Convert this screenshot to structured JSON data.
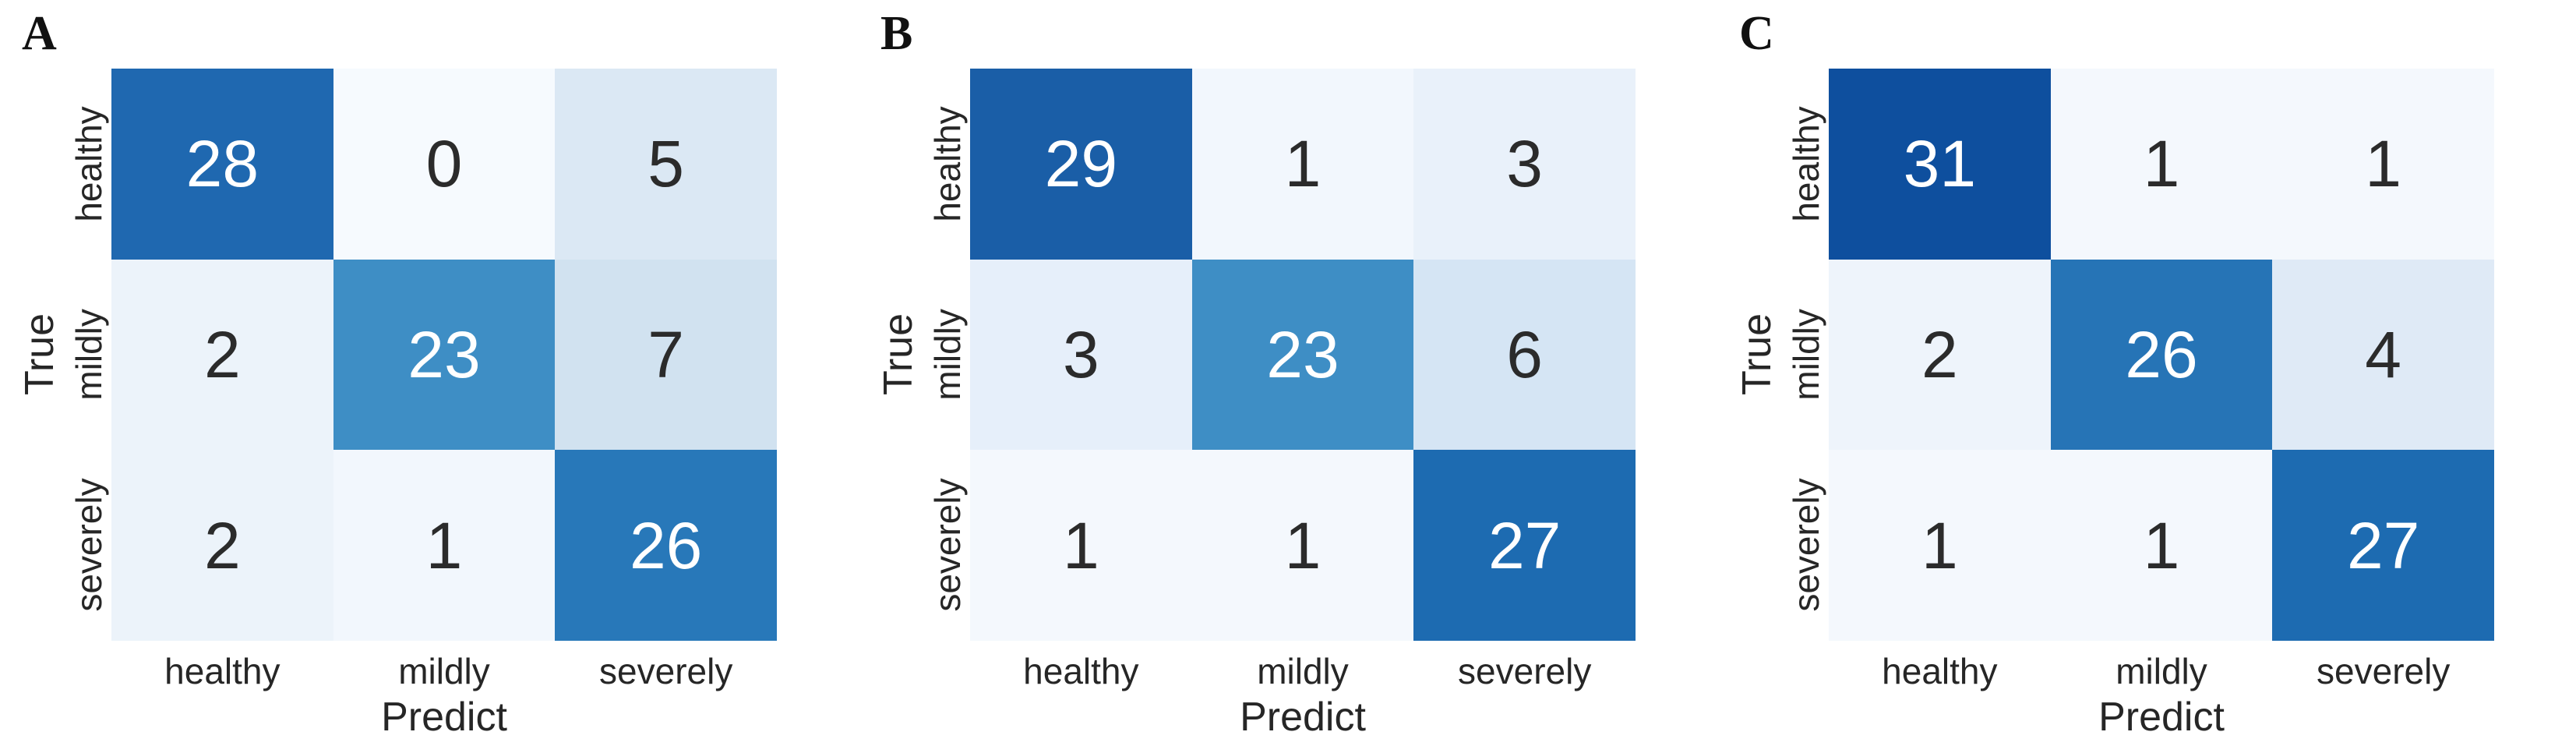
{
  "colors": {
    "background": "#ffffff",
    "label_text": "#262626",
    "cell_dark_text": "#2b2b2b",
    "cell_light_text": "#ffffff",
    "colormap_accent": "#2171b5"
  },
  "chart_data": [
    {
      "type": "heatmap",
      "panel_label": "A",
      "xlabel": "Predict",
      "ylabel": "True",
      "x_categories": [
        "healthy",
        "mildly",
        "severely"
      ],
      "y_categories": [
        "healthy",
        "mildly",
        "severely"
      ],
      "matrix": [
        [
          28,
          0,
          5
        ],
        [
          2,
          23,
          7
        ],
        [
          2,
          1,
          26
        ]
      ],
      "cell_colors": [
        [
          "#1f68b0",
          "#f6fafe",
          "#dbe8f4"
        ],
        [
          "#ecf3fa",
          "#3e8ec5",
          "#d1e2f0"
        ],
        [
          "#ecf3fa",
          "#f2f7fd",
          "#2878b9"
        ]
      ],
      "text_colors": [
        [
          "#ffffff",
          "#2b2b2b",
          "#2b2b2b"
        ],
        [
          "#2b2b2b",
          "#ffffff",
          "#2b2b2b"
        ],
        [
          "#2b2b2b",
          "#2b2b2b",
          "#ffffff"
        ]
      ],
      "colormap": "Blues",
      "legend": "none",
      "grid": false
    },
    {
      "type": "heatmap",
      "panel_label": "B",
      "xlabel": "Predict",
      "ylabel": "True",
      "x_categories": [
        "healthy",
        "mildly",
        "severely"
      ],
      "y_categories": [
        "healthy",
        "mildly",
        "severely"
      ],
      "matrix": [
        [
          29,
          1,
          3
        ],
        [
          3,
          23,
          6
        ],
        [
          1,
          1,
          27
        ]
      ],
      "cell_colors": [
        [
          "#1a5ea7",
          "#f2f7fd",
          "#e9f1fa"
        ],
        [
          "#e6effa",
          "#3e8ec5",
          "#d5e5f4"
        ],
        [
          "#f4f8fd",
          "#f4f8fd",
          "#1d6bb1"
        ]
      ],
      "text_colors": [
        [
          "#ffffff",
          "#2b2b2b",
          "#2b2b2b"
        ],
        [
          "#2b2b2b",
          "#ffffff",
          "#2b2b2b"
        ],
        [
          "#2b2b2b",
          "#2b2b2b",
          "#ffffff"
        ]
      ],
      "colormap": "Blues",
      "legend": "none",
      "grid": false
    },
    {
      "type": "heatmap",
      "panel_label": "C",
      "xlabel": "Predict",
      "ylabel": "True",
      "x_categories": [
        "healthy",
        "mildly",
        "severely"
      ],
      "y_categories": [
        "healthy",
        "mildly",
        "severely"
      ],
      "matrix": [
        [
          31,
          1,
          1
        ],
        [
          2,
          26,
          4
        ],
        [
          1,
          1,
          27
        ]
      ],
      "cell_colors": [
        [
          "#0e4f9e",
          "#f4f8fd",
          "#f4f8fd"
        ],
        [
          "#eef4fb",
          "#2674b6",
          "#dfeaf6"
        ],
        [
          "#f4f8fd",
          "#f4f8fd",
          "#1d6bb1"
        ]
      ],
      "text_colors": [
        [
          "#ffffff",
          "#2b2b2b",
          "#2b2b2b"
        ],
        [
          "#2b2b2b",
          "#ffffff",
          "#2b2b2b"
        ],
        [
          "#2b2b2b",
          "#2b2b2b",
          "#ffffff"
        ]
      ],
      "colormap": "Blues",
      "legend": "none",
      "grid": false
    }
  ]
}
